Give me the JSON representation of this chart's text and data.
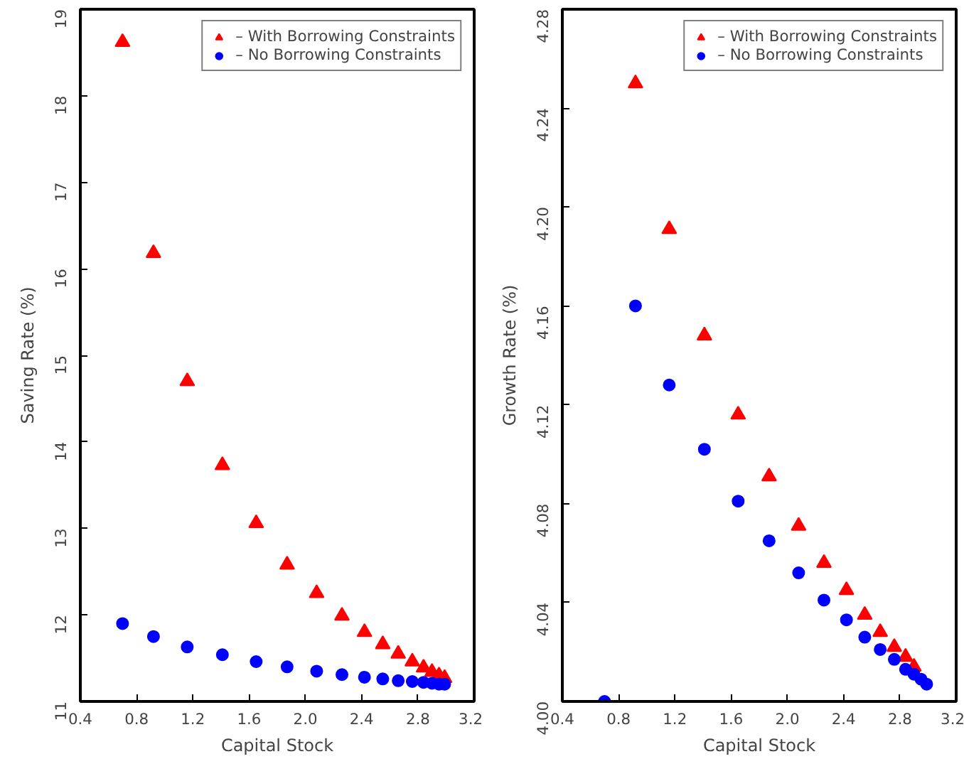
{
  "chart_data": [
    {
      "type": "scatter",
      "xlabel": "Capital Stock",
      "ylabel": "Saving Rate (%)",
      "xlim": [
        0.4,
        3.2
      ],
      "ylim": [
        11,
        19
      ],
      "xticks": [
        0.4,
        0.8,
        1.2,
        1.6,
        {
          "value": 2.0,
          "label": "2.0"
        },
        2.4,
        2.8,
        3.2
      ],
      "yticks": [
        11,
        12,
        13,
        14,
        15,
        16,
        17,
        18,
        19
      ],
      "legend": "top right",
      "grid": false,
      "x": [
        0.7,
        0.92,
        1.16,
        1.41,
        1.65,
        1.87,
        2.08,
        2.26,
        2.42,
        2.55,
        2.66,
        2.76,
        2.84,
        2.9,
        2.95,
        2.99
      ],
      "series": [
        {
          "name": "– With Borrowing Constraints",
          "color": "#ff0000",
          "marker": "triangle",
          "values": [
            18.62,
            16.18,
            14.7,
            13.73,
            13.06,
            12.58,
            12.25,
            11.99,
            11.8,
            11.66,
            11.55,
            11.46,
            11.39,
            11.34,
            11.3,
            11.27
          ]
        },
        {
          "name": "– No Borrowing Constraints",
          "color": "#0000ff",
          "marker": "circle",
          "values": [
            11.9,
            11.75,
            11.63,
            11.54,
            11.46,
            11.4,
            11.35,
            11.31,
            11.28,
            11.26,
            11.24,
            11.23,
            11.22,
            11.21,
            11.2,
            11.2
          ]
        }
      ]
    },
    {
      "type": "scatter",
      "xlabel": "Capital Stock",
      "ylabel": "Growth Rate (%)",
      "xlim": [
        0.4,
        3.2
      ],
      "ylim": [
        4.0,
        4.28
      ],
      "xticks": [
        0.4,
        0.8,
        1.2,
        1.6,
        {
          "value": 2.0,
          "label": "2.0"
        },
        2.4,
        2.8,
        3.2
      ],
      "yticks": [
        {
          "value": 4.0,
          "label": "4.00"
        },
        4.04,
        4.08,
        4.12,
        4.16,
        {
          "value": 4.2,
          "label": "4.20"
        },
        4.24,
        4.28
      ],
      "legend": "top right",
      "grid": false,
      "x": [
        0.7,
        0.92,
        1.16,
        1.41,
        1.65,
        1.87,
        2.08,
        2.26,
        2.42,
        2.55,
        2.66,
        2.76,
        2.84,
        2.9,
        2.95,
        2.99
      ],
      "series": [
        {
          "name": "– With Borrowing Constraints",
          "color": "#ff0000",
          "marker": "triangle",
          "values": [
            null,
            4.25,
            4.191,
            4.148,
            4.116,
            4.091,
            4.071,
            4.056,
            4.045,
            4.035,
            4.028,
            4.022,
            4.018,
            4.014,
            null,
            null
          ]
        },
        {
          "name": "– No Borrowing Constraints",
          "color": "#0000ff",
          "marker": "circle",
          "values": [
            4.0,
            4.16,
            4.128,
            4.102,
            4.081,
            4.065,
            4.052,
            4.041,
            4.033,
            4.026,
            4.021,
            4.017,
            4.013,
            4.011,
            4.009,
            4.007
          ]
        }
      ]
    }
  ]
}
